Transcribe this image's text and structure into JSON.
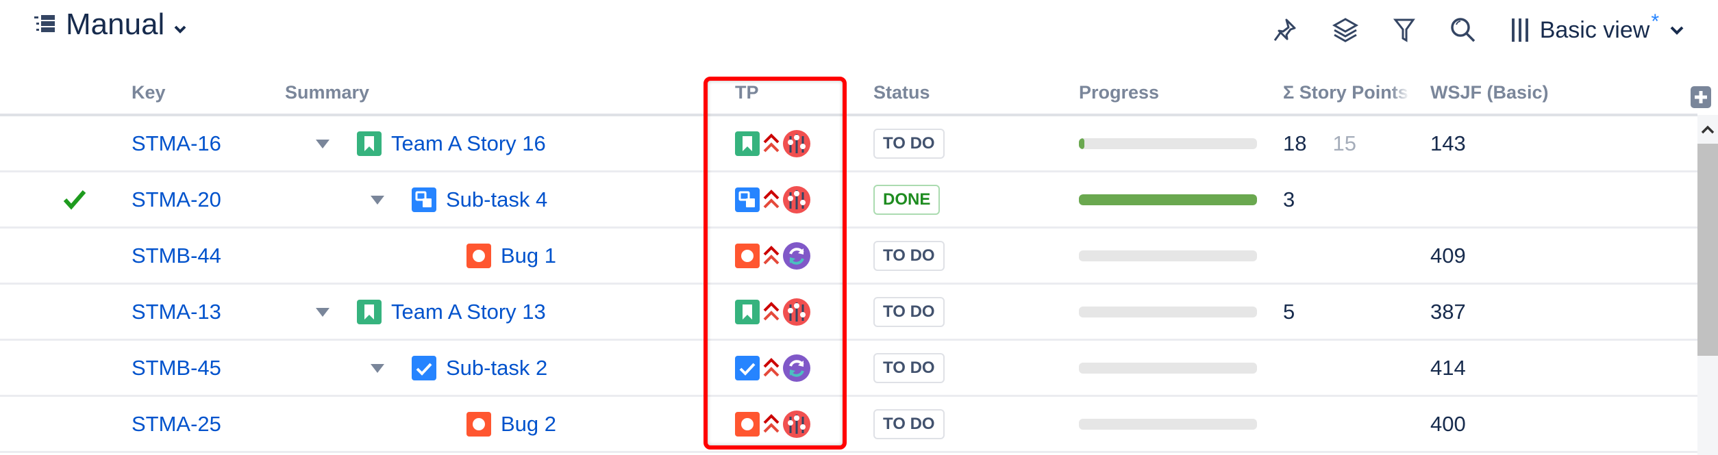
{
  "header": {
    "title": "Manual",
    "title_icon": "structure-icon",
    "view_label": "Basic view",
    "view_modified_mark": "*"
  },
  "toolbar": {
    "icons": [
      "pin-icon",
      "layers-icon",
      "filter-icon",
      "search-icon",
      "columns-icon"
    ]
  },
  "columns": {
    "key": "Key",
    "summary": "Summary",
    "tp": "TP",
    "status": "Status",
    "progress": "Progress",
    "story_points": "Σ Story Points",
    "wsjf": "WSJF (Basic)"
  },
  "colors": {
    "link": "#0052cc",
    "story": "#36b37e",
    "subtask": "#2684ff",
    "bug": "#ff5630",
    "highlight": "#ff0000",
    "progress": "#6aa84f"
  },
  "rows": [
    {
      "resolved": false,
      "key": "STMA-16",
      "summary": "Team A Story 16",
      "type": "story",
      "level": 1,
      "expandable": true,
      "priority": "highest",
      "tp_icon": "sliders",
      "status": "TO DO",
      "progress": 0.03,
      "sp": "18",
      "sp_sub": "15",
      "wsjf": "143"
    },
    {
      "resolved": true,
      "key": "STMA-20",
      "summary": "Sub-task 4",
      "type": "subtask",
      "level": 2,
      "expandable": true,
      "priority": "highest",
      "tp_icon": "sliders",
      "status": "DONE",
      "progress": 1,
      "sp": "3",
      "sp_sub": "",
      "wsjf": ""
    },
    {
      "resolved": false,
      "key": "STMB-44",
      "summary": "Bug 1",
      "type": "bug",
      "level": 3,
      "expandable": false,
      "priority": "highest",
      "tp_icon": "sync",
      "status": "TO DO",
      "progress": 0,
      "sp": "",
      "sp_sub": "",
      "wsjf": "409"
    },
    {
      "resolved": false,
      "key": "STMA-13",
      "summary": "Team A Story 13",
      "type": "story",
      "level": 1,
      "expandable": true,
      "priority": "highest",
      "tp_icon": "sliders",
      "status": "TO DO",
      "progress": 0,
      "sp": "5",
      "sp_sub": "",
      "wsjf": "387"
    },
    {
      "resolved": false,
      "key": "STMB-45",
      "summary": "Sub-task 2",
      "type": "task",
      "level": 2,
      "expandable": true,
      "priority": "highest",
      "tp_icon": "sync",
      "status": "TO DO",
      "progress": 0,
      "sp": "",
      "sp_sub": "",
      "wsjf": "414"
    },
    {
      "resolved": false,
      "key": "STMA-25",
      "summary": "Bug 2",
      "type": "bug",
      "level": 3,
      "expandable": false,
      "priority": "highest",
      "tp_icon": "sliders",
      "status": "TO DO",
      "progress": 0,
      "sp": "",
      "sp_sub": "",
      "wsjf": "400"
    }
  ]
}
